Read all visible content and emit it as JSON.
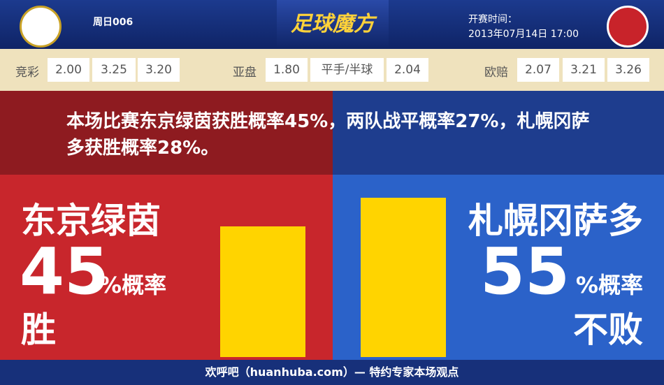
{
  "header": {
    "match_id": "周日006",
    "brand": "足球魔方",
    "time_label": "开赛时间：",
    "time": "2013年07月14日 17:00"
  },
  "odds": [
    {
      "label": "竞彩",
      "values": [
        "2.00",
        "3.25",
        "3.20"
      ]
    },
    {
      "label": "亚盘",
      "values": [
        "1.80",
        "平手/半球",
        "2.04"
      ]
    },
    {
      "label": "欧赔",
      "values": [
        "2.07",
        "3.21",
        "3.26"
      ]
    }
  ],
  "summary": "本场比赛东京绿茵获胜概率45%，两队战平概率27%，札幌冈萨多获胜概率28%。",
  "teams": [
    {
      "name": "东京绿茵",
      "value": 45,
      "unit": "%概率",
      "result": "胜"
    },
    {
      "name": "札幌冈萨多",
      "value": 55,
      "unit": "%概率",
      "result": "不败"
    }
  ],
  "footer": "欢呼吧（huanhuba.com）— 特约专家本场观点"
}
